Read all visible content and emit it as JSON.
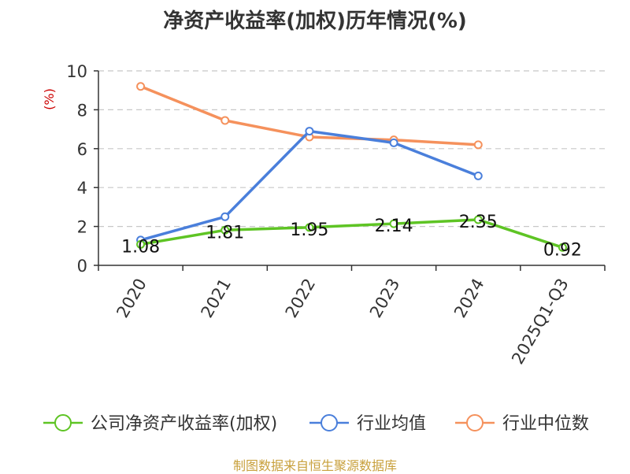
{
  "title": "净资产收益率(加权)历年情况(%)",
  "source": "制图数据来自恒生聚源数据库",
  "chart_data": {
    "type": "line",
    "title": "净资产收益率(加权)历年情况(%)",
    "ylabel": "(%)",
    "ylim": [
      0,
      10
    ],
    "yticks": [
      "0",
      "2",
      "4",
      "6",
      "8",
      "10"
    ],
    "grid": true,
    "legend_position": "bottom",
    "categories": [
      "2020",
      "2021",
      "2022",
      "2023",
      "2024",
      "2025Q1-Q3"
    ],
    "series": [
      {
        "name": "公司净资产收益率(加权)",
        "color": "#5ec424",
        "values": [
          1.08,
          1.81,
          1.95,
          2.14,
          2.35,
          0.92
        ],
        "labels": [
          "1.08",
          "1.81",
          "1.95",
          "2.14",
          "2.35",
          "0.92"
        ]
      },
      {
        "name": "行业均值",
        "color": "#4a7fdb",
        "values": [
          1.3,
          2.5,
          6.9,
          6.3,
          4.6,
          null
        ]
      },
      {
        "name": "行业中位数",
        "color": "#f5915c",
        "values": [
          9.2,
          7.45,
          6.6,
          6.45,
          6.2,
          null
        ]
      }
    ]
  }
}
